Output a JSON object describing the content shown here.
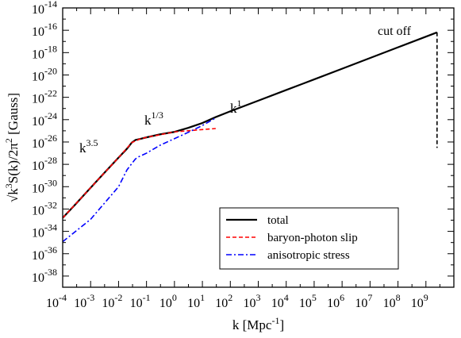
{
  "chart_data": {
    "type": "line",
    "xscale": "log",
    "yscale": "log",
    "xlim": [
      0.0001,
      10000000000
    ],
    "ylim": [
      1e-39,
      1e-14
    ],
    "xlabel": "k [Mpc",
    "xlabel_sup": "-1",
    "xlabel_end": "]",
    "ylabel": {
      "p1": "√k",
      "s1": "3",
      "p2": "S(k)/2π",
      "s2": "2",
      "p3": " [Gauss]"
    },
    "x_ticks": [
      {
        "base": "10",
        "exp": "-4",
        "value": 0.0001
      },
      {
        "base": "10",
        "exp": "-3",
        "value": 0.001
      },
      {
        "base": "10",
        "exp": "-2",
        "value": 0.01
      },
      {
        "base": "10",
        "exp": "-1",
        "value": 0.1
      },
      {
        "base": "10",
        "exp": "0",
        "value": 1
      },
      {
        "base": "10",
        "exp": "1",
        "value": 10
      },
      {
        "base": "10",
        "exp": "2",
        "value": 100
      },
      {
        "base": "10",
        "exp": "3",
        "value": 1000
      },
      {
        "base": "10",
        "exp": "4",
        "value": 10000
      },
      {
        "base": "10",
        "exp": "5",
        "value": 100000
      },
      {
        "base": "10",
        "exp": "6",
        "value": 1000000
      },
      {
        "base": "10",
        "exp": "7",
        "value": 10000000
      },
      {
        "base": "10",
        "exp": "8",
        "value": 100000000
      },
      {
        "base": "10",
        "exp": "9",
        "value": 1000000000
      }
    ],
    "y_ticks": [
      {
        "base": "10",
        "exp": "-14",
        "value": 1e-14
      },
      {
        "base": "10",
        "exp": "-16",
        "value": 1e-16
      },
      {
        "base": "10",
        "exp": "-18",
        "value": 1e-18
      },
      {
        "base": "10",
        "exp": "-20",
        "value": 1e-20
      },
      {
        "base": "10",
        "exp": "-22",
        "value": 1e-22
      },
      {
        "base": "10",
        "exp": "-24",
        "value": 1e-24
      },
      {
        "base": "10",
        "exp": "-26",
        "value": 1e-26
      },
      {
        "base": "10",
        "exp": "-28",
        "value": 1e-28
      },
      {
        "base": "10",
        "exp": "-30",
        "value": 1e-30
      },
      {
        "base": "10",
        "exp": "-32",
        "value": 1e-32
      },
      {
        "base": "10",
        "exp": "-34",
        "value": 1e-34
      },
      {
        "base": "10",
        "exp": "-36",
        "value": 1e-36
      },
      {
        "base": "10",
        "exp": "-38",
        "value": 1e-38
      }
    ],
    "series": [
      {
        "name": "total",
        "color": "#000000",
        "style": "solid",
        "points": [
          [
            0.0001,
            1.6e-33
          ],
          [
            0.0003,
            3e-32
          ],
          [
            0.001,
            8e-31
          ],
          [
            0.003,
            1.6e-29
          ],
          [
            0.01,
            4e-28
          ],
          [
            0.02,
            2.5e-27
          ],
          [
            0.03,
            9e-27
          ],
          [
            0.04,
            1.5e-26
          ],
          [
            0.06,
            1.9e-26
          ],
          [
            0.1,
            2.6e-26
          ],
          [
            0.3,
            4.8e-26
          ],
          [
            1,
            8e-26
          ],
          [
            3,
            1.8e-25
          ],
          [
            10,
            5e-25
          ],
          [
            30,
            1.7e-24
          ],
          [
            100,
            5.6e-24
          ],
          [
            1000,
            5e-23
          ],
          [
            10000,
            4.5e-22
          ],
          [
            100000,
            4e-21
          ],
          [
            1000000,
            3.6e-20
          ],
          [
            10000000,
            3.3e-19
          ],
          [
            100000000,
            3e-18
          ],
          [
            1000000000,
            2.7e-17
          ],
          [
            2500000000,
            6.5e-17
          ]
        ]
      },
      {
        "name": "baryon-photon slip",
        "color": "#ff0000",
        "style": "dashed",
        "points": [
          [
            0.0001,
            1.6e-33
          ],
          [
            0.001,
            8e-31
          ],
          [
            0.01,
            4e-28
          ],
          [
            0.03,
            9e-27
          ],
          [
            0.06,
            1.9e-26
          ],
          [
            0.1,
            2.6e-26
          ],
          [
            1,
            8e-26
          ],
          [
            10,
            1.3e-25
          ],
          [
            30,
            1.6e-25
          ]
        ]
      },
      {
        "name": "anisotropic stress",
        "color": "#0000ff",
        "style": "dashdot",
        "points": [
          [
            0.0001,
            1.2e-35
          ],
          [
            0.001,
            1.2e-33
          ],
          [
            0.01,
            1e-30
          ],
          [
            0.02,
            3.2e-29
          ],
          [
            0.03,
            1.2e-28
          ],
          [
            0.04,
            3e-28
          ],
          [
            0.05,
            4.5e-28
          ],
          [
            0.1,
            1e-27
          ],
          [
            0.3,
            5e-27
          ],
          [
            1,
            2e-26
          ],
          [
            3,
            7e-26
          ],
          [
            10,
            3e-25
          ],
          [
            20,
            8e-25
          ],
          [
            30,
            1.4e-24
          ]
        ]
      },
      {
        "name": "cutoff",
        "color": "#000000",
        "style": "dashed",
        "points": [
          [
            2500000000,
            6.5e-17
          ],
          [
            2500000000,
            3e-27
          ]
        ]
      }
    ],
    "annotations": [
      {
        "id": "k35",
        "base": "k",
        "exp": "3.5"
      },
      {
        "id": "k13",
        "base": "k",
        "exp": "1/3"
      },
      {
        "id": "k1",
        "base": "k",
        "exp": "1"
      },
      {
        "id": "cutoff",
        "text": "cut off"
      }
    ],
    "legend": {
      "position": "lower-right",
      "entries": [
        "total",
        "baryon-photon slip",
        "anisotropic stress"
      ]
    }
  }
}
